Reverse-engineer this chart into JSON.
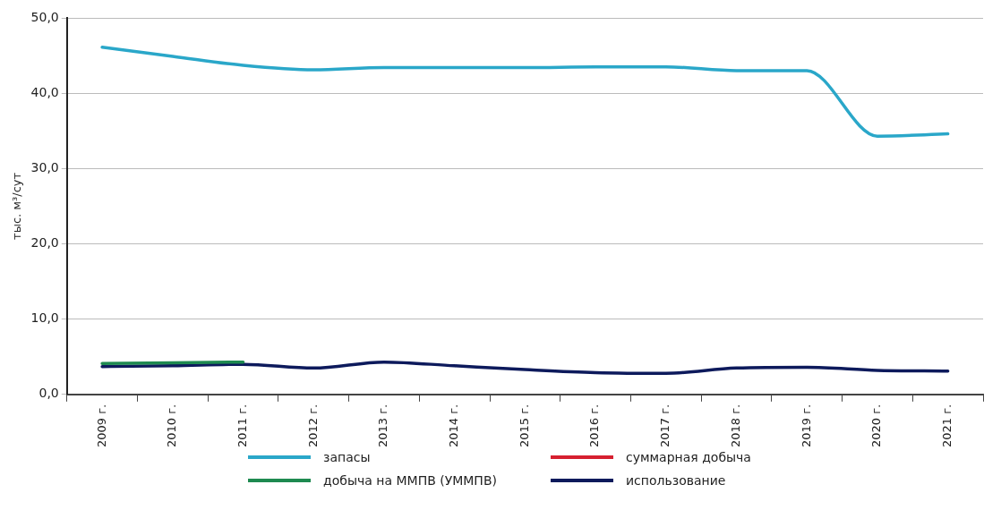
{
  "chart_data": {
    "type": "line",
    "ylabel": "тыс. м³/сут",
    "categories": [
      "2009 г.",
      "2010 г.",
      "2011 г.",
      "2012 г.",
      "2013 г.",
      "2014 г.",
      "2015 г.",
      "2016 г.",
      "2017 г.",
      "2018 г.",
      "2019 г.",
      "2020 г.",
      "2021 г."
    ],
    "series": [
      {
        "name": "запасы",
        "color": "#2aa7c9",
        "values": [
          46.1,
          44.9,
          43.7,
          43.1,
          43.4,
          43.4,
          43.4,
          43.5,
          43.5,
          43.0,
          43.0,
          34.3,
          34.6
        ]
      },
      {
        "name": "суммарная добыча",
        "color": "#d62030",
        "values": [
          null,
          null,
          null,
          null,
          null,
          null,
          null,
          null,
          null,
          null,
          null,
          null,
          null
        ]
      },
      {
        "name": "добыча на ММПВ (УММПВ)",
        "color": "#1e8a50",
        "values": [
          4.1,
          4.2,
          4.3,
          null,
          null,
          null,
          null,
          null,
          null,
          null,
          null,
          null,
          null
        ]
      },
      {
        "name": "использование",
        "color": "#0d1a5c",
        "values": [
          3.7,
          3.8,
          4.0,
          3.5,
          4.3,
          3.8,
          3.3,
          2.9,
          2.8,
          3.5,
          3.6,
          3.2,
          3.1
        ]
      }
    ],
    "ylim": [
      0,
      50
    ],
    "yticks": [
      {
        "value": 0,
        "label": "0,0"
      },
      {
        "value": 10,
        "label": "10,0"
      },
      {
        "value": 20,
        "label": "20,0"
      },
      {
        "value": 30,
        "label": "30,0"
      },
      {
        "value": 40,
        "label": "40,0"
      },
      {
        "value": 50,
        "label": "50,0"
      }
    ],
    "grid": "y",
    "legend": "bottom",
    "marker": "none",
    "line_style": "solid"
  }
}
